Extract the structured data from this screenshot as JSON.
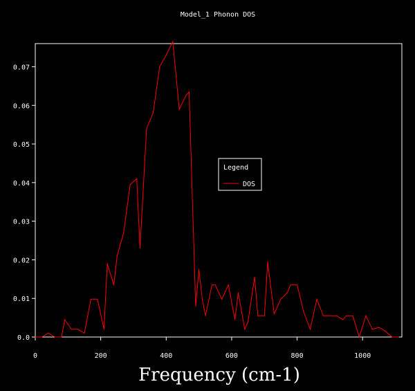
{
  "chart_data": {
    "type": "line",
    "title": "Model_1 Phonon DOS",
    "xlabel": "Frequency (cm-1)",
    "ylabel": "",
    "xlim": [
      0,
      1120
    ],
    "ylim": [
      0,
      0.076
    ],
    "x_ticks": [
      0,
      200,
      400,
      600,
      800,
      1000
    ],
    "y_ticks": [
      0.0,
      0.01,
      0.02,
      0.03,
      0.04,
      0.05,
      0.06,
      0.07
    ],
    "y_tick_labels": [
      "0.0",
      "0.01",
      "0.02",
      "0.03",
      "0.04",
      "0.05",
      "0.06",
      "0.07"
    ],
    "legend": {
      "title": "Legend",
      "position": "center-right",
      "entries": [
        "DOS"
      ]
    },
    "colors": {
      "background": "#000000",
      "axes": "#ffffff",
      "series": "#ff0000"
    },
    "grid": false,
    "series": [
      {
        "name": "DOS",
        "x": [
          0,
          20,
          40,
          60,
          80,
          90,
          110,
          130,
          150,
          170,
          190,
          210,
          220,
          240,
          250,
          270,
          290,
          310,
          320,
          340,
          360,
          380,
          400,
          420,
          440,
          460,
          470,
          490,
          500,
          510,
          520,
          540,
          550,
          570,
          590,
          610,
          620,
          640,
          650,
          670,
          680,
          700,
          710,
          730,
          750,
          770,
          780,
          800,
          820,
          840,
          860,
          880,
          900,
          920,
          940,
          950,
          970,
          990,
          1010,
          1030,
          1050,
          1070,
          1090,
          1110
        ],
        "y": [
          0.0,
          0.0,
          0.001,
          0.0,
          0.0,
          0.0045,
          0.002,
          0.002,
          0.001,
          0.0098,
          0.0098,
          0.002,
          0.019,
          0.0135,
          0.021,
          0.027,
          0.0395,
          0.041,
          0.023,
          0.054,
          0.058,
          0.07,
          0.073,
          0.0765,
          0.059,
          0.0625,
          0.0635,
          0.008,
          0.0175,
          0.01,
          0.0055,
          0.0135,
          0.0135,
          0.0098,
          0.0135,
          0.0045,
          0.0115,
          0.002,
          0.004,
          0.0155,
          0.0055,
          0.0055,
          0.0195,
          0.006,
          0.0098,
          0.0115,
          0.0135,
          0.0135,
          0.0065,
          0.002,
          0.0098,
          0.0055,
          0.0055,
          0.0055,
          0.0045,
          0.0055,
          0.0055,
          0.0,
          0.0055,
          0.002,
          0.0025,
          0.0015,
          0.0,
          0.0
        ]
      }
    ]
  }
}
